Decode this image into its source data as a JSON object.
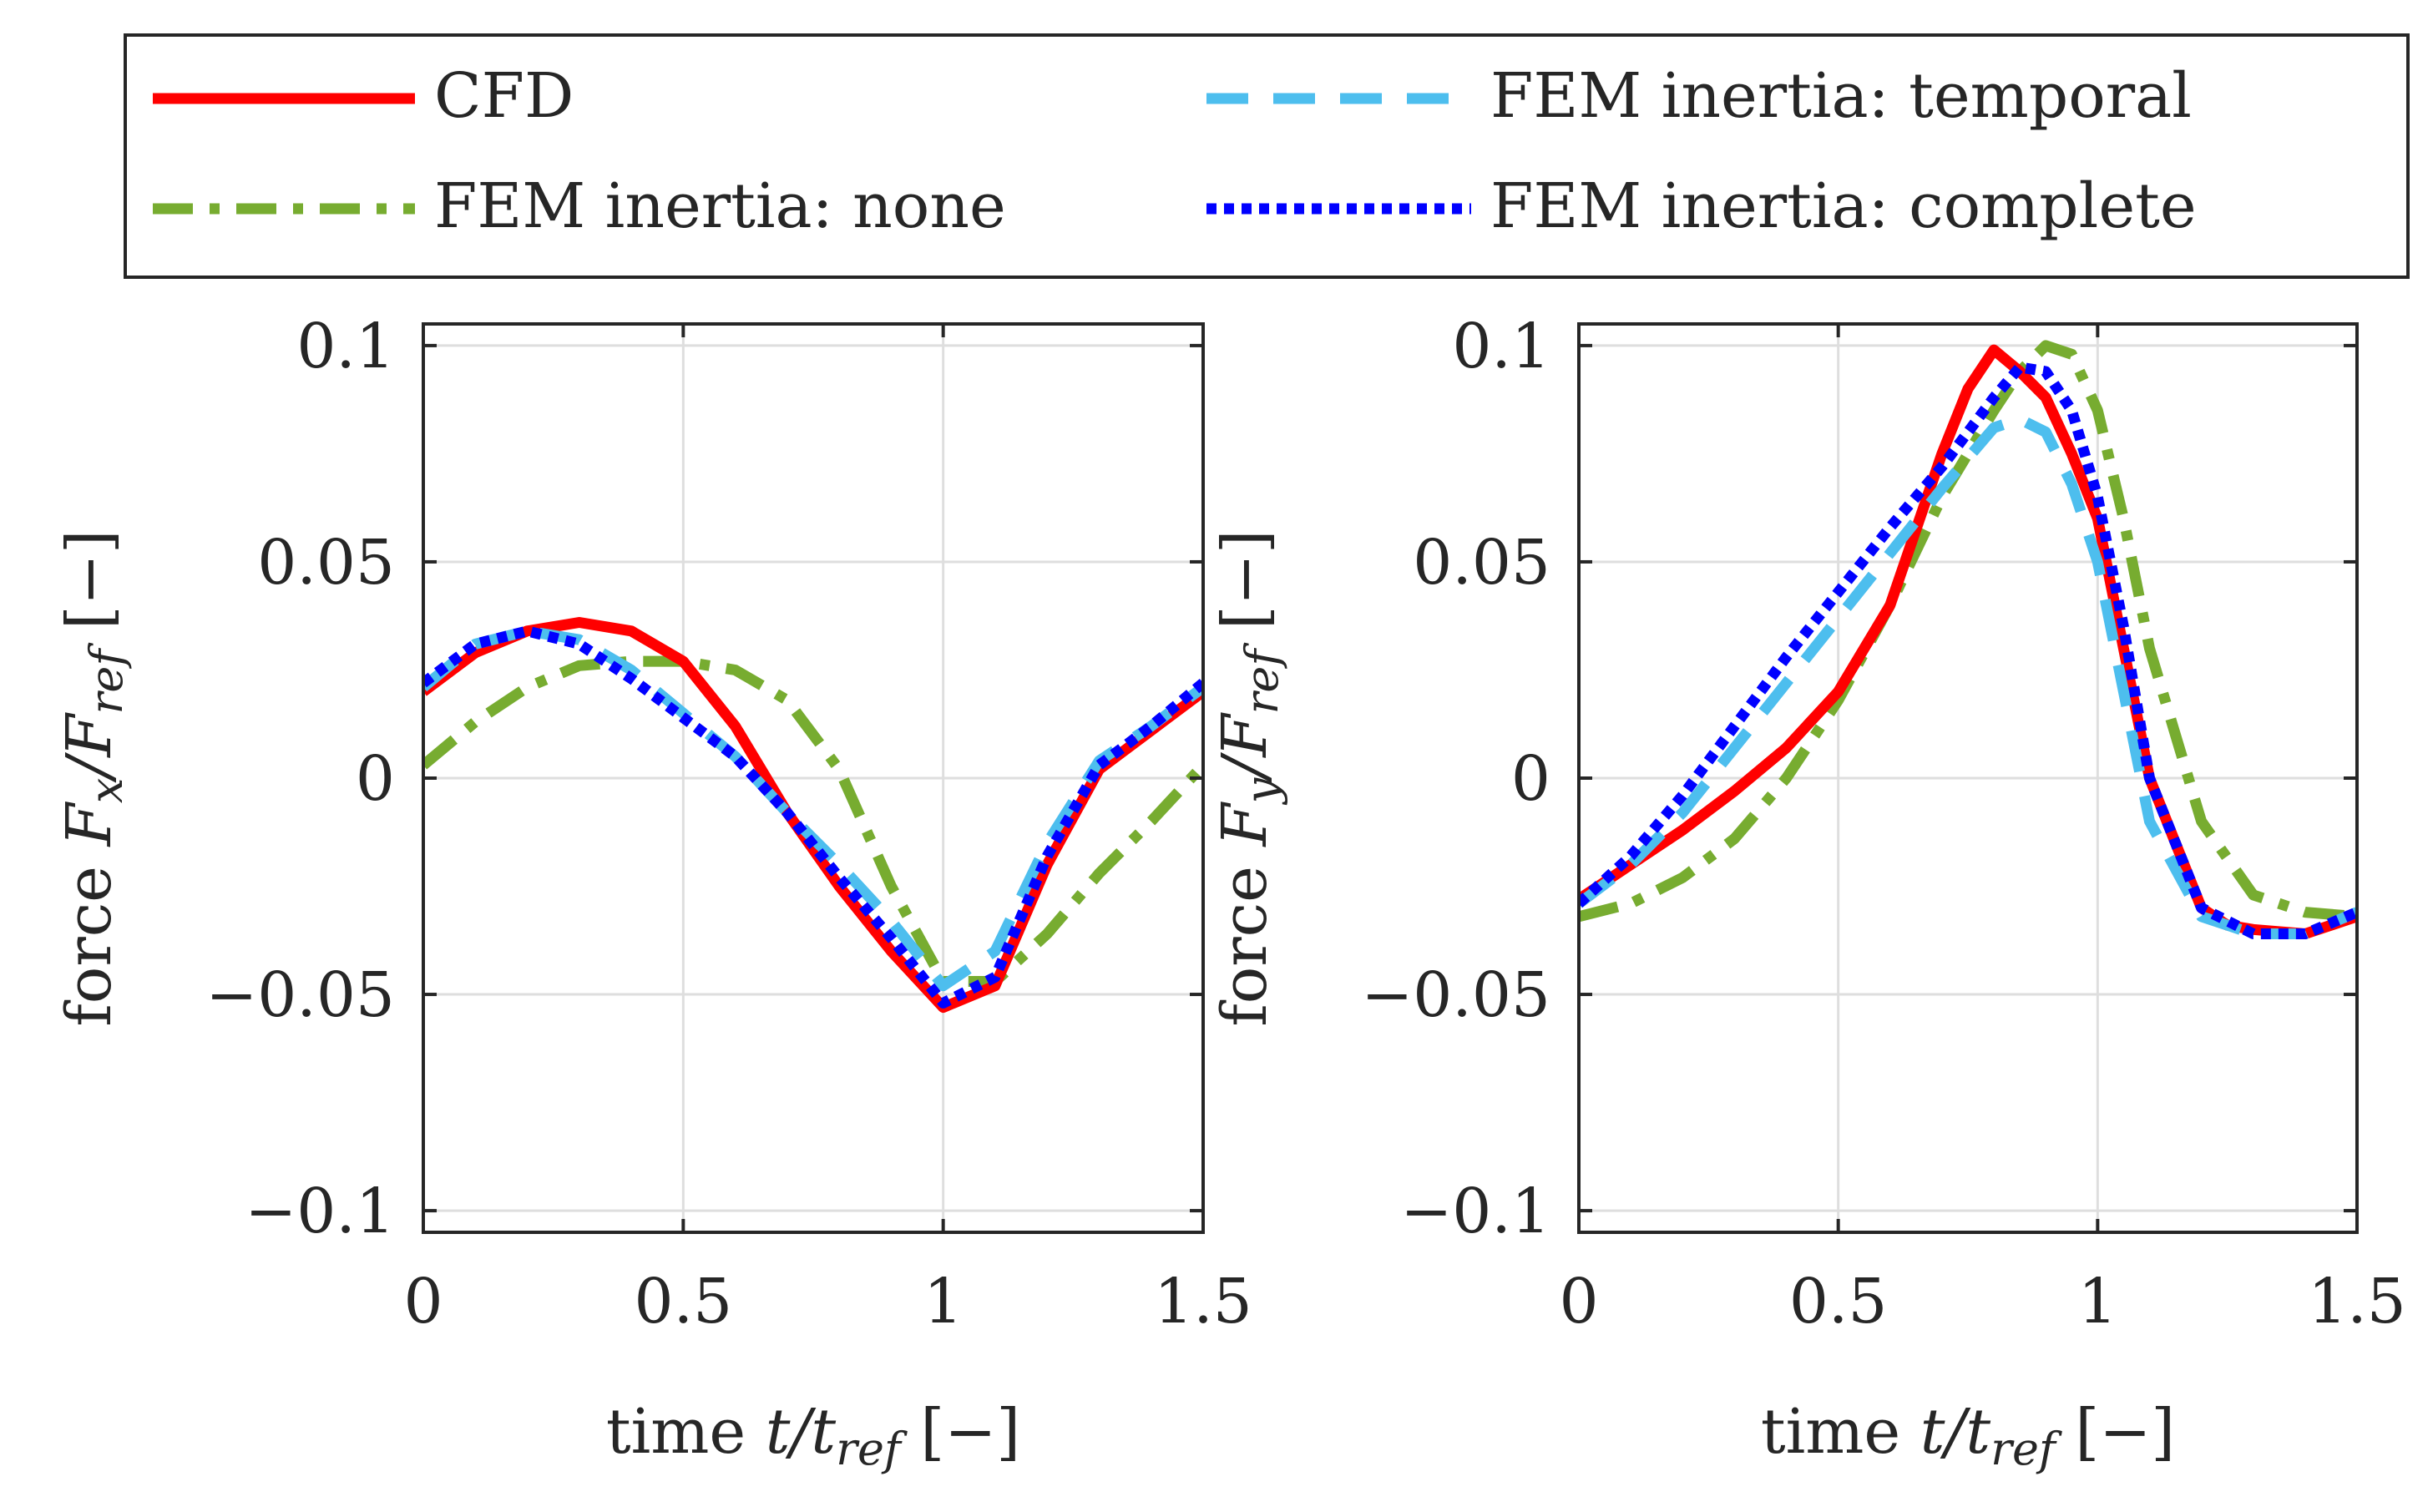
{
  "legend": {
    "entries": [
      {
        "label": "CFD",
        "color": "#ff0000",
        "dash": "solid"
      },
      {
        "label": "FEM inertia: temporal",
        "color": "#4dbeee",
        "dash": "dashed"
      },
      {
        "label": "FEM inertia: none",
        "color": "#77ac30",
        "dash": "dashdot"
      },
      {
        "label": "FEM inertia: complete",
        "color": "#0000ff",
        "dash": "dotted"
      }
    ]
  },
  "chart_data": [
    {
      "type": "line",
      "xlabel_main": "time ",
      "xlabel_var": "t/t",
      "xlabel_sub": "ref",
      "xlabel_unit": " [−]",
      "ylabel_main": "force ",
      "ylabel_var": "F",
      "ylabel_varsub": "x",
      "ylabel_var2": "/F",
      "ylabel_sub2": "ref",
      "ylabel_unit": " [−]",
      "xlim": [
        0,
        1.5
      ],
      "ylim": [
        -0.105,
        0.105
      ],
      "xticks": [
        0,
        0.5,
        1,
        1.5
      ],
      "xtick_labels": [
        "0",
        "0.5",
        "1",
        "1.5"
      ],
      "yticks": [
        -0.1,
        -0.05,
        0,
        0.05,
        0.1
      ],
      "ytick_labels": [
        "−0.1",
        "−0.05",
        "0",
        "0.05",
        "0.1"
      ],
      "grid": true,
      "series": [
        {
          "name": "CFD",
          "x": [
            0,
            0.1,
            0.2,
            0.3,
            0.4,
            0.5,
            0.6,
            0.7,
            0.8,
            0.9,
            1.0,
            1.1,
            1.2,
            1.3,
            1.4,
            1.5
          ],
          "y": [
            0.02,
            0.029,
            0.034,
            0.036,
            0.034,
            0.027,
            0.012,
            -0.008,
            -0.025,
            -0.04,
            -0.053,
            -0.048,
            -0.02,
            0.002,
            0.011,
            0.02
          ]
        },
        {
          "name": "FEM inertia: temporal",
          "x": [
            0,
            0.1,
            0.2,
            0.3,
            0.4,
            0.5,
            0.6,
            0.7,
            0.8,
            0.9,
            1.0,
            1.1,
            1.2,
            1.3,
            1.4,
            1.5
          ],
          "y": [
            0.021,
            0.031,
            0.034,
            0.032,
            0.025,
            0.015,
            0.005,
            -0.008,
            -0.02,
            -0.033,
            -0.048,
            -0.04,
            -0.015,
            0.004,
            0.012,
            0.021
          ]
        },
        {
          "name": "FEM inertia: none",
          "x": [
            0,
            0.1,
            0.2,
            0.3,
            0.4,
            0.5,
            0.6,
            0.7,
            0.8,
            0.9,
            1.0,
            1.1,
            1.2,
            1.3,
            1.4,
            1.5
          ],
          "y": [
            0.003,
            0.013,
            0.021,
            0.026,
            0.027,
            0.027,
            0.025,
            0.018,
            0.002,
            -0.025,
            -0.047,
            -0.047,
            -0.036,
            -0.022,
            -0.01,
            0.003
          ]
        },
        {
          "name": "FEM inertia: complete",
          "x": [
            0,
            0.1,
            0.2,
            0.3,
            0.4,
            0.5,
            0.6,
            0.7,
            0.8,
            0.9,
            1.0,
            1.1,
            1.2,
            1.3,
            1.4,
            1.5
          ],
          "y": [
            0.022,
            0.031,
            0.034,
            0.031,
            0.023,
            0.014,
            0.005,
            -0.008,
            -0.023,
            -0.037,
            -0.052,
            -0.046,
            -0.018,
            0.003,
            0.012,
            0.022
          ]
        }
      ]
    },
    {
      "type": "line",
      "xlabel_main": "time ",
      "xlabel_var": "t/t",
      "xlabel_sub": "ref",
      "xlabel_unit": " [−]",
      "ylabel_main": "force ",
      "ylabel_var": "F",
      "ylabel_varsub": "y",
      "ylabel_var2": "/F",
      "ylabel_sub2": "ref",
      "ylabel_unit": " [−]",
      "xlim": [
        0,
        1.5
      ],
      "ylim": [
        -0.105,
        0.105
      ],
      "xticks": [
        0,
        0.5,
        1,
        1.5
      ],
      "xtick_labels": [
        "0",
        "0.5",
        "1",
        "1.5"
      ],
      "yticks": [
        -0.1,
        -0.05,
        0,
        0.05,
        0.1
      ],
      "ytick_labels": [
        "−0.1",
        "−0.05",
        "0",
        "0.05",
        "0.1"
      ],
      "grid": true,
      "series": [
        {
          "name": "CFD",
          "x": [
            0,
            0.1,
            0.2,
            0.3,
            0.4,
            0.5,
            0.6,
            0.7,
            0.75,
            0.8,
            0.85,
            0.9,
            0.95,
            1.0,
            1.05,
            1.1,
            1.2,
            1.25,
            1.3,
            1.4,
            1.5
          ],
          "y": [
            -0.028,
            -0.02,
            -0.012,
            -0.003,
            0.007,
            0.02,
            0.04,
            0.075,
            0.09,
            0.099,
            0.094,
            0.088,
            0.075,
            0.06,
            0.03,
            0.0,
            -0.03,
            -0.034,
            -0.035,
            -0.036,
            -0.032
          ]
        },
        {
          "name": "FEM inertia: temporal",
          "x": [
            0,
            0.1,
            0.2,
            0.3,
            0.4,
            0.5,
            0.6,
            0.7,
            0.8,
            0.85,
            0.9,
            0.95,
            1.0,
            1.05,
            1.1,
            1.2,
            1.3,
            1.4,
            1.5
          ],
          "y": [
            -0.029,
            -0.02,
            -0.008,
            0.007,
            0.022,
            0.037,
            0.052,
            0.067,
            0.081,
            0.083,
            0.08,
            0.068,
            0.05,
            0.02,
            -0.01,
            -0.032,
            -0.036,
            -0.036,
            -0.031
          ]
        },
        {
          "name": "FEM inertia: none",
          "x": [
            0,
            0.1,
            0.2,
            0.3,
            0.4,
            0.5,
            0.6,
            0.7,
            0.8,
            0.85,
            0.9,
            0.95,
            1.0,
            1.05,
            1.1,
            1.2,
            1.3,
            1.4,
            1.5
          ],
          "y": [
            -0.032,
            -0.029,
            -0.023,
            -0.014,
            0.0,
            0.018,
            0.04,
            0.065,
            0.085,
            0.094,
            0.1,
            0.098,
            0.085,
            0.06,
            0.03,
            -0.01,
            -0.027,
            -0.031,
            -0.032
          ]
        },
        {
          "name": "FEM inertia: complete",
          "x": [
            0,
            0.1,
            0.2,
            0.3,
            0.4,
            0.5,
            0.6,
            0.7,
            0.8,
            0.85,
            0.9,
            0.95,
            1.0,
            1.05,
            1.1,
            1.2,
            1.3,
            1.4,
            1.5
          ],
          "y": [
            -0.029,
            -0.018,
            -0.004,
            0.012,
            0.028,
            0.043,
            0.058,
            0.072,
            0.088,
            0.095,
            0.094,
            0.085,
            0.065,
            0.035,
            0.0,
            -0.03,
            -0.036,
            -0.036,
            -0.031
          ]
        }
      ]
    }
  ]
}
